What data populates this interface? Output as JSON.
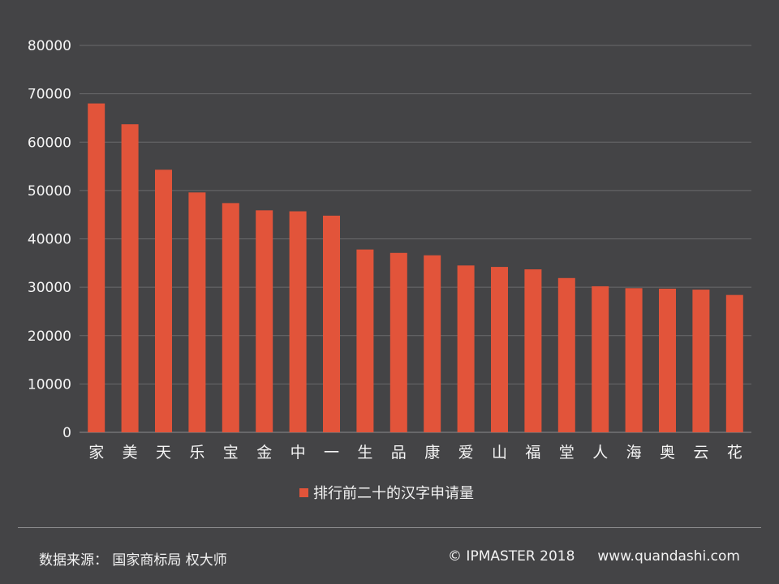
{
  "colors": {
    "background": "#444446",
    "bar": "#e2543a",
    "grid": "#6a6a6c"
  },
  "chart_data": {
    "type": "bar",
    "categories": [
      "家",
      "美",
      "天",
      "乐",
      "宝",
      "金",
      "中",
      "一",
      "生",
      "品",
      "康",
      "爱",
      "山",
      "福",
      "堂",
      "人",
      "海",
      "奥",
      "云",
      "花"
    ],
    "series": [
      {
        "name": "排行前二十的汉字申请量",
        "values": [
          68000,
          63700,
          54300,
          49600,
          47400,
          45900,
          45700,
          44800,
          37800,
          37100,
          36600,
          34500,
          34200,
          33700,
          31900,
          30200,
          29800,
          29700,
          29500,
          28400
        ]
      }
    ],
    "ylim": [
      0,
      80000
    ],
    "yticks": [
      0,
      10000,
      20000,
      30000,
      40000,
      50000,
      60000,
      70000,
      80000
    ],
    "grid": true,
    "legend_position": "bottom"
  },
  "footer": {
    "source": "数据来源： 国家商标局  权大师",
    "copyright": "© IPMASTER  2018",
    "website": "www.quandashi.com"
  }
}
